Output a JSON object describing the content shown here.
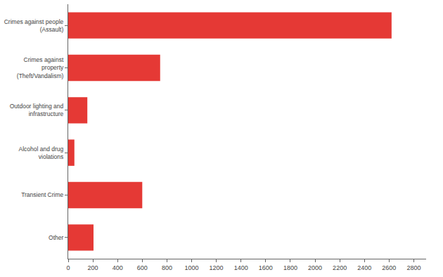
{
  "chart_data": {
    "type": "bar",
    "orientation": "horizontal",
    "categories": [
      "Crimes against people (Assault)",
      "Crimes against property (Theft/Vandalism)",
      "Outdoor lighting and infrastructure",
      "Alcohol and drug violations",
      "Transient Crime",
      "Other"
    ],
    "values": [
      2620,
      745,
      155,
      50,
      600,
      205
    ],
    "color": "#e53935",
    "xlim": [
      0,
      2900
    ],
    "xticks": [
      0,
      200,
      400,
      600,
      800,
      1000,
      1200,
      1400,
      1600,
      1800,
      2000,
      2200,
      2400,
      2600,
      2800
    ],
    "grid": false
  }
}
